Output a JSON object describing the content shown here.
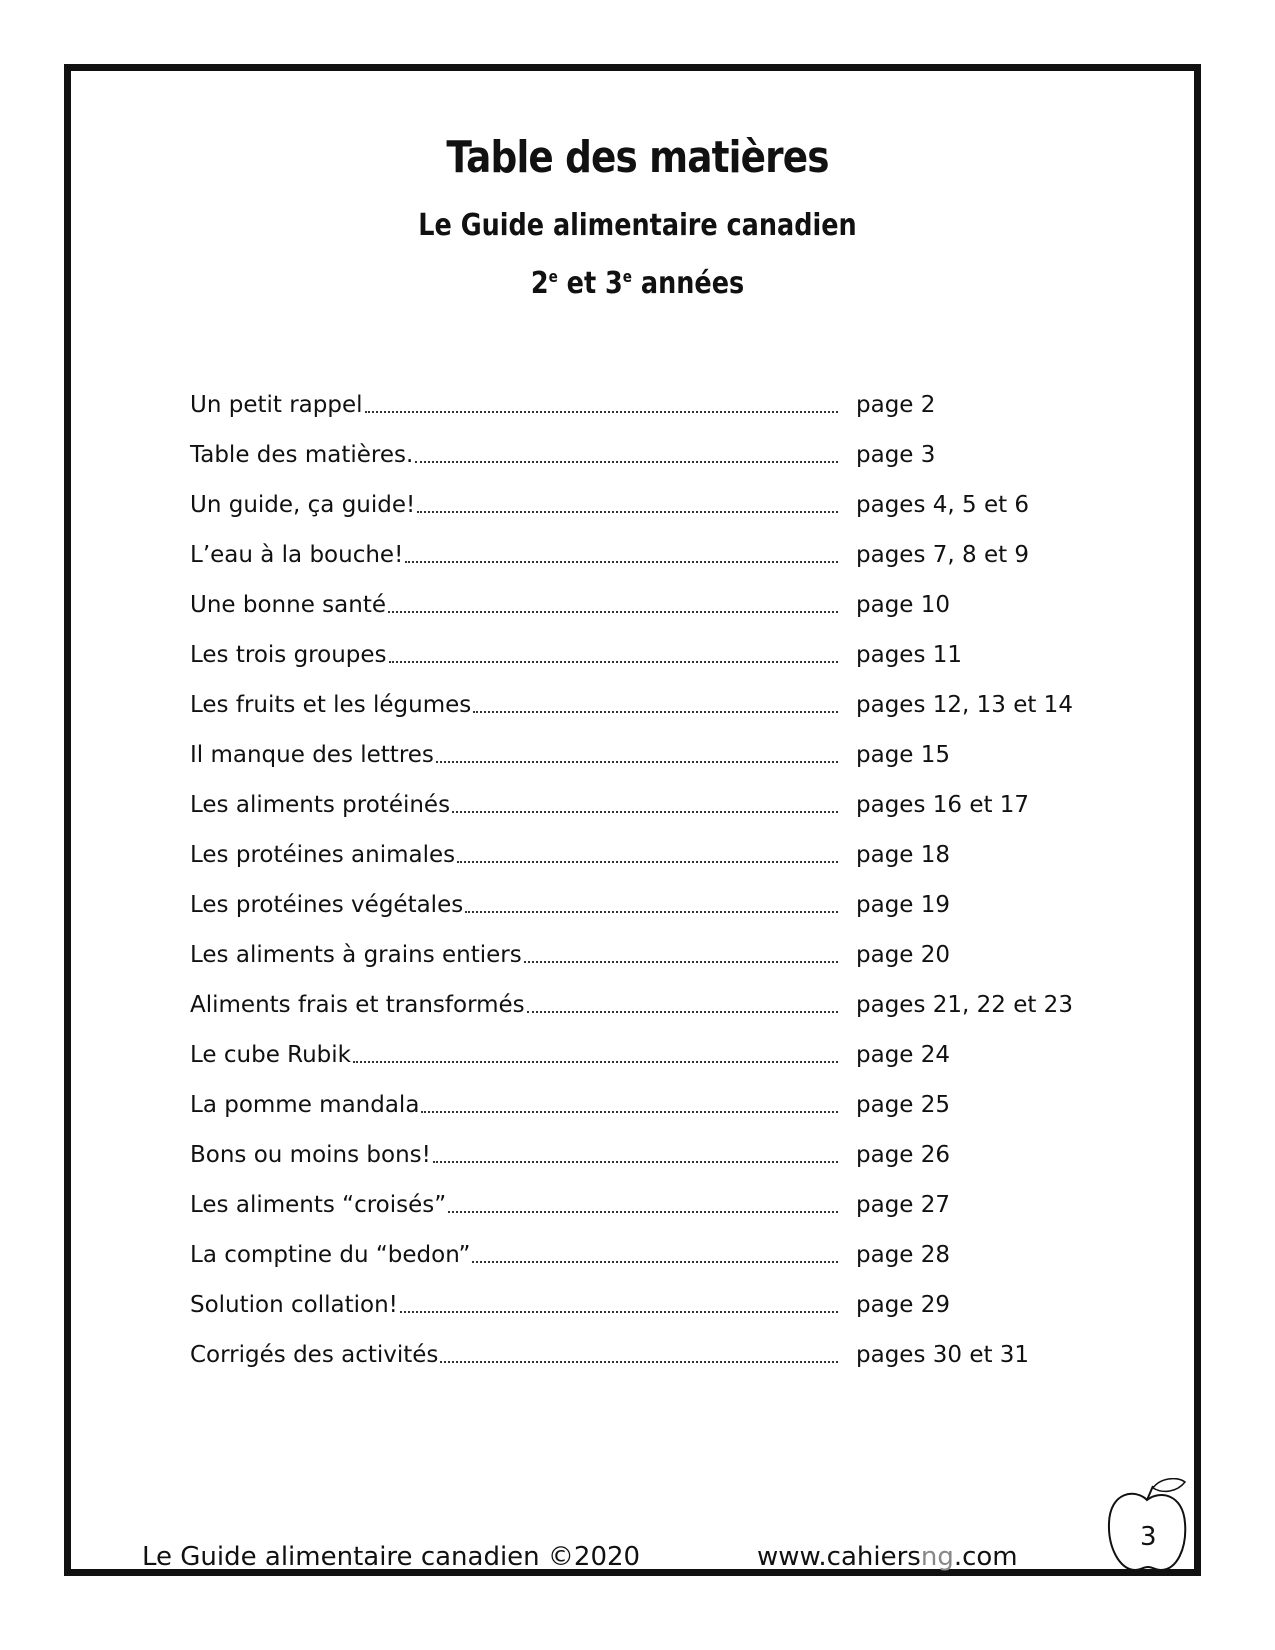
{
  "title": "Table des matières",
  "subtitle": "Le Guide alimentaire canadien",
  "grades": {
    "g1": "2",
    "sup1": "e",
    "mid": " et ",
    "g2": "3",
    "sup2": "e",
    "end": " années"
  },
  "entries": [
    {
      "label": "Un petit rappel",
      "page": "page 2"
    },
    {
      "label": "Table des matières.",
      "page": "page 3"
    },
    {
      "label": "Un guide, ça guide!",
      "page": "pages 4, 5 et 6"
    },
    {
      "label": "L’eau à la bouche!",
      "page": "pages 7, 8 et 9"
    },
    {
      "label": "Une bonne santé",
      "page": "page 10"
    },
    {
      "label": "Les trois groupes",
      "page": "pages 11"
    },
    {
      "label": "Les fruits et les légumes",
      "page": "pages 12, 13 et 14"
    },
    {
      "label": "Il manque des lettres",
      "page": "page 15"
    },
    {
      "label": "Les aliments protéinés",
      "page": "pages 16 et 17"
    },
    {
      "label": "Les protéines animales",
      "page": "page 18"
    },
    {
      "label": "Les protéines végétales",
      "page": "page 19"
    },
    {
      "label": "Les aliments à grains entiers",
      "page": "page 20"
    },
    {
      "label": "Aliments frais et transformés",
      "page": "pages 21, 22 et 23"
    },
    {
      "label": "Le cube Rubik",
      "page": "page 24"
    },
    {
      "label": "La pomme mandala",
      "page": "page 25"
    },
    {
      "label": "Bons ou moins bons!",
      "page": "page 26"
    },
    {
      "label": "Les aliments “croisés”",
      "page": "page 27"
    },
    {
      "label": "La comptine du “bedon”",
      "page": "page 28"
    },
    {
      "label": "Solution collation!",
      "page": "page 29"
    },
    {
      "label": "Corrigés des activités",
      "page": "pages 30 et 31"
    }
  ],
  "footer": {
    "left": "Le Guide alimentaire canadien ©2020",
    "url_a": "www.cahiers",
    "url_b": "ng",
    "url_c": ".com",
    "page_number": "3"
  },
  "icons": {
    "apple": "apple-icon"
  }
}
